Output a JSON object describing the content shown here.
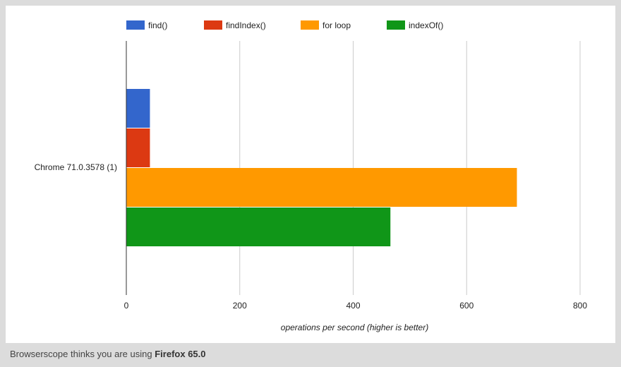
{
  "footer": {
    "prefix": "Browserscope thinks you are using",
    "browser": "Firefox 65.0"
  },
  "chart_data": {
    "type": "bar",
    "orientation": "horizontal",
    "categories": [
      "Chrome 71.0.3578 (1)"
    ],
    "series": [
      {
        "name": "find()",
        "color": "#3366cc",
        "values": [
          41
        ]
      },
      {
        "name": "findIndex()",
        "color": "#dc3912",
        "values": [
          41
        ]
      },
      {
        "name": "for loop",
        "color": "#ff9900",
        "values": [
          688
        ]
      },
      {
        "name": "indexOf()",
        "color": "#109618",
        "values": [
          465
        ]
      }
    ],
    "xlabel": "operations per second (higher is better)",
    "ylabel": "",
    "xlim": [
      0,
      800
    ],
    "xticks": [
      "0",
      "200",
      "400",
      "600",
      "800"
    ],
    "grid": true,
    "legend_position": "top"
  }
}
